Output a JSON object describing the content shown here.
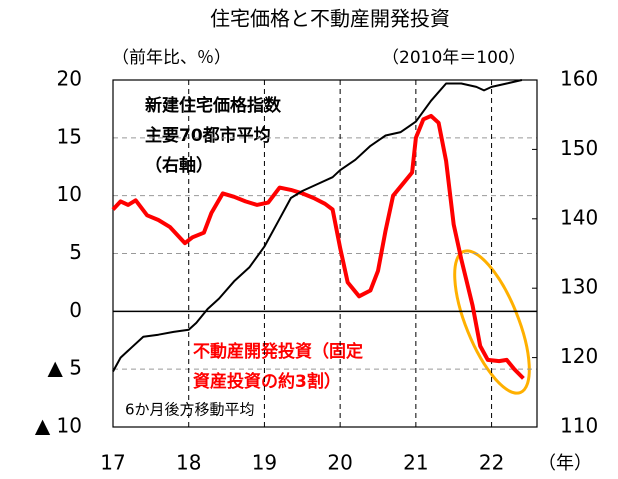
{
  "chart_data": {
    "type": "line",
    "title": "住宅価格と不動産開発投資",
    "ylabel": "（前年比、％）",
    "y2label": "（2010年＝100）",
    "xlabel": "（年）",
    "annotations": [
      "新建住宅価格指数",
      "主要70都市平均",
      "（右軸）",
      "不動産開発投資（固定",
      "資産投資の約3割）",
      "6か月後方移動平均"
    ],
    "xlim": [
      17,
      22.6
    ],
    "xticks": [
      17,
      18,
      19,
      20,
      21,
      22
    ],
    "ylim": [
      -10,
      20
    ],
    "yticks": [
      {
        "value": -10,
        "label": "▲ 10"
      },
      {
        "value": -5,
        "label": "▲ 5"
      },
      0,
      5,
      10,
      15,
      20
    ],
    "y2lim": [
      110,
      160
    ],
    "y2ticks": [
      110,
      120,
      130,
      140,
      150,
      160
    ],
    "grid": true,
    "series": [
      {
        "name": "不動産開発投資",
        "color": "#ff0000",
        "x": [
          17.0,
          17.1,
          17.2,
          17.3,
          17.45,
          17.6,
          17.75,
          17.95,
          18.05,
          18.2,
          18.3,
          18.45,
          18.6,
          18.75,
          18.9,
          19.05,
          19.2,
          19.35,
          19.5,
          19.65,
          19.8,
          19.9,
          20.0,
          20.1,
          20.25,
          20.4,
          20.5,
          20.6,
          20.7,
          20.85,
          20.95,
          21.0,
          21.1,
          21.2,
          21.3,
          21.4,
          21.5,
          21.6,
          21.75,
          21.85,
          21.95,
          22.1,
          22.2,
          22.3,
          22.42
        ],
        "values": [
          8.8,
          9.5,
          9.2,
          9.6,
          8.3,
          7.9,
          7.3,
          5.9,
          6.4,
          6.8,
          8.5,
          10.2,
          9.9,
          9.5,
          9.2,
          9.4,
          10.7,
          10.5,
          10.2,
          9.8,
          9.3,
          8.8,
          5.5,
          2.5,
          1.3,
          1.8,
          3.5,
          7.0,
          10.0,
          11.2,
          12.0,
          15.0,
          16.6,
          16.9,
          16.3,
          13.0,
          7.5,
          4.5,
          0.5,
          -3.0,
          -4.2,
          -4.3,
          -4.2,
          -5.0,
          -5.8
        ]
      },
      {
        "name": "新建住宅価格指数",
        "color": "#000000",
        "axis": "y2",
        "x": [
          17.0,
          17.1,
          17.25,
          17.4,
          17.6,
          17.8,
          18.0,
          18.1,
          18.25,
          18.4,
          18.6,
          18.8,
          19.0,
          19.2,
          19.35,
          19.5,
          19.7,
          19.9,
          20.0,
          20.2,
          20.4,
          20.6,
          20.8,
          21.0,
          21.2,
          21.4,
          21.6,
          21.8,
          21.9,
          22.0,
          22.2,
          22.4
        ],
        "values": [
          118,
          120,
          121.5,
          123,
          123.3,
          123.7,
          124,
          125,
          127,
          128.5,
          131,
          133,
          136,
          140,
          143,
          144,
          145,
          146,
          147,
          148.5,
          150.5,
          152,
          152.5,
          154,
          157,
          159.5,
          159.5,
          159,
          158.5,
          159,
          159.5,
          160
        ]
      }
    ]
  }
}
